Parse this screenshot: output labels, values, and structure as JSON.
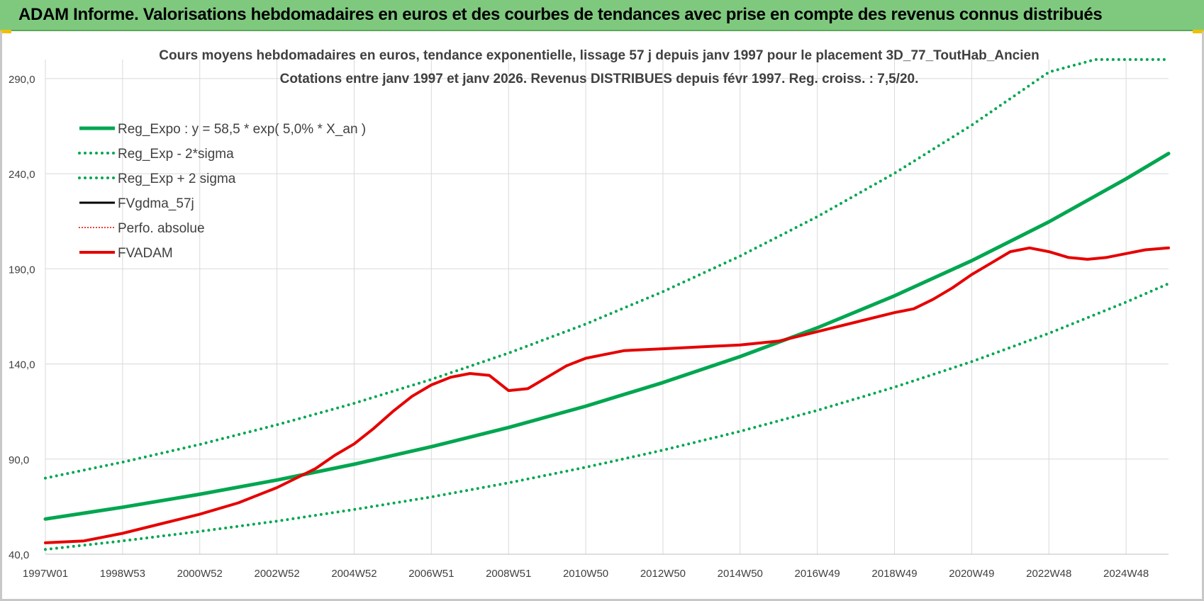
{
  "header": {
    "title": "ADAM Informe. Valorisations hebdomadaires en euros et des courbes de tendances avec prise en compte des revenus connus distribués"
  },
  "colors": {
    "green": "#00a650",
    "red": "#e60000",
    "black": "#000000",
    "header_bg": "#7fc97f",
    "grid": "#d9d9d9",
    "text": "#404040"
  },
  "chart_data": {
    "type": "line",
    "title": "Cours moyens hebdomadaires en euros, tendance exponentielle, lissage 57 j depuis janv 1997  pour le placement 3D_77_ToutHab_Ancien",
    "subtitle": "Cotations entre janv 1997 et janv 2026. Revenus DISTRIBUES depuis févr 1997. Reg. croiss. : 7,5/20.",
    "xlabel": "",
    "ylabel": "",
    "xlim": [
      1997.0,
      2026.1
    ],
    "ylim": [
      40,
      300
    ],
    "y_ticks": [
      40,
      90,
      140,
      190,
      240,
      290
    ],
    "y_tick_labels": [
      "40,0",
      "90,0",
      "140,0",
      "190,0",
      "240,0",
      "290,0"
    ],
    "x_ticks": [
      1997.0,
      1999.0,
      2001.0,
      2003.0,
      2005.0,
      2007.0,
      2009.0,
      2011.0,
      2013.0,
      2015.0,
      2017.0,
      2019.0,
      2021.0,
      2023.0,
      2025.0
    ],
    "x_tick_labels": [
      "1997W01",
      "1998W53",
      "2000W52",
      "2002W52",
      "2004W52",
      "2006W51",
      "2008W51",
      "2010W50",
      "2012W50",
      "2014W50",
      "2016W49",
      "2018W49",
      "2020W49",
      "2022W48",
      "2024W48"
    ],
    "grid": true,
    "legend_position": "top-left",
    "legend": [
      {
        "name": "Reg_Expo : y = 58,5 * exp( 5,0% *  X_an )",
        "color": "#00a650",
        "style": "solid",
        "width": 5
      },
      {
        "name": "Reg_Exp - 2*sigma",
        "color": "#00a650",
        "style": "dotted",
        "width": 4
      },
      {
        "name": "Reg_Exp + 2 sigma",
        "color": "#00a650",
        "style": "dotted",
        "width": 4
      },
      {
        "name": "FVgdma_57j",
        "color": "#000000",
        "style": "solid",
        "width": 3
      },
      {
        "name": "Perfo. absolue",
        "color": "#e60000",
        "style": "dotted",
        "width": 2
      },
      {
        "name": "FVADAM",
        "color": "#e60000",
        "style": "solid",
        "width": 4
      }
    ],
    "series": [
      {
        "name": "Reg_Expo : y = 58,5 * exp( 5,0% *  X_an )",
        "x": [
          1997,
          1999,
          2001,
          2003,
          2005,
          2007,
          2009,
          2011,
          2013,
          2015,
          2017,
          2019,
          2021,
          2023,
          2025,
          2026.1
        ],
        "y": [
          58.5,
          64.7,
          71.5,
          79.0,
          87.3,
          96.5,
          106.6,
          117.8,
          130.2,
          143.9,
          159.0,
          175.8,
          194.3,
          214.7,
          237.3,
          250.6
        ]
      },
      {
        "name": "Reg_Exp - 2*sigma",
        "x": [
          1997,
          1999,
          2001,
          2003,
          2005,
          2007,
          2009,
          2011,
          2013,
          2015,
          2017,
          2019,
          2021,
          2023,
          2025,
          2026.1
        ],
        "y": [
          42.5,
          47.0,
          52.0,
          57.4,
          63.5,
          70.1,
          77.5,
          85.7,
          94.7,
          104.6,
          115.6,
          127.8,
          141.2,
          156.1,
          172.5,
          182.2
        ]
      },
      {
        "name": "Reg_Exp + 2 sigma",
        "x": [
          1997,
          1999,
          2001,
          2003,
          2005,
          2007,
          2009,
          2011,
          2013,
          2015,
          2017,
          2019,
          2021,
          2023,
          2024.2,
          2026.1
        ],
        "y": [
          80.0,
          88.4,
          97.7,
          108.0,
          119.3,
          131.9,
          145.7,
          161.0,
          178.0,
          196.7,
          217.4,
          240.2,
          265.5,
          293.4,
          300.0,
          300.0
        ]
      },
      {
        "name": "FVADAM",
        "x": [
          1997,
          1998,
          1999,
          2000,
          2001,
          2002,
          2003,
          2004,
          2004.5,
          2005,
          2005.5,
          2006,
          2006.5,
          2007,
          2007.5,
          2008,
          2008.5,
          2009,
          2009.5,
          2010,
          2010.5,
          2011,
          2011.5,
          2012,
          2013,
          2014,
          2015,
          2016,
          2017,
          2018,
          2019,
          2019.5,
          2020,
          2020.5,
          2021,
          2021.5,
          2022,
          2022.5,
          2023,
          2023.5,
          2024,
          2024.5,
          2025,
          2025.5,
          2026.1
        ],
        "y": [
          46,
          47,
          51,
          56,
          61,
          67,
          75,
          85,
          92,
          98,
          106,
          115,
          123,
          129,
          133,
          135,
          134,
          126,
          127,
          133,
          139,
          143,
          145,
          147,
          148,
          149,
          150,
          152,
          157,
          162,
          167,
          169,
          174,
          180,
          187,
          193,
          199,
          201,
          199,
          196,
          195,
          196,
          198,
          200,
          201
        ]
      }
    ]
  }
}
